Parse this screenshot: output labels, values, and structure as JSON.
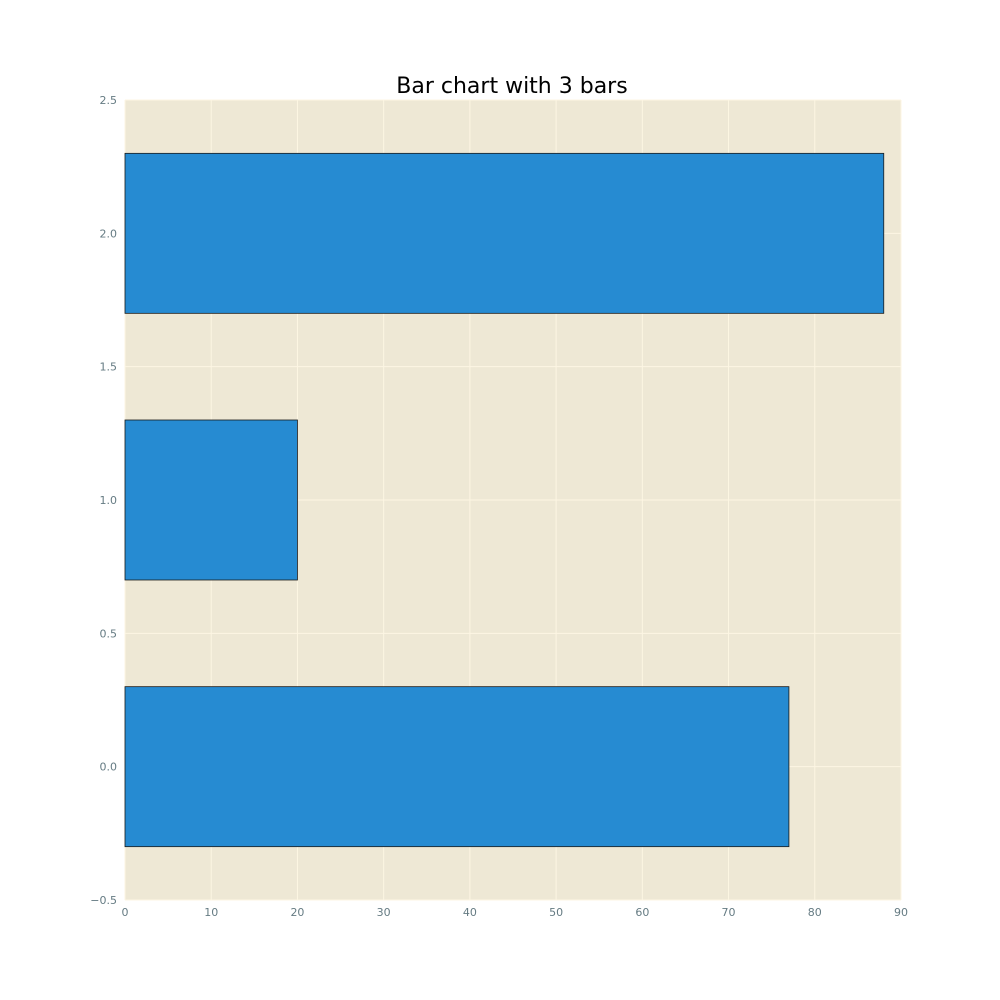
{
  "chart_data": {
    "type": "bar",
    "orientation": "horizontal",
    "title": "Bar chart with 3 bars",
    "xlabel": "",
    "ylabel": "",
    "y_positions": [
      0,
      1,
      2
    ],
    "values": [
      77,
      20,
      88
    ],
    "bar_height": 0.6,
    "xlim": [
      0,
      90
    ],
    "ylim": [
      -0.5,
      2.5
    ],
    "x_ticks": [
      0,
      10,
      20,
      30,
      40,
      50,
      60,
      70,
      80,
      90
    ],
    "x_tick_labels": [
      "0",
      "10",
      "20",
      "30",
      "40",
      "50",
      "60",
      "70",
      "80",
      "90"
    ],
    "y_ticks": [
      -0.5,
      0.0,
      0.5,
      1.0,
      1.5,
      2.0,
      2.5
    ],
    "y_tick_labels": [
      "−0.5",
      "0.0",
      "0.5",
      "1.0",
      "1.5",
      "2.0",
      "2.5"
    ],
    "grid": true,
    "legend": "none",
    "colors": {
      "bar_fill": "#268bd2",
      "bar_edge": "#1a1a1a",
      "plot_background": "#eee8d5",
      "grid": "#fdf6e3",
      "tick_text": "#657b83",
      "title_text": "#000000"
    }
  }
}
